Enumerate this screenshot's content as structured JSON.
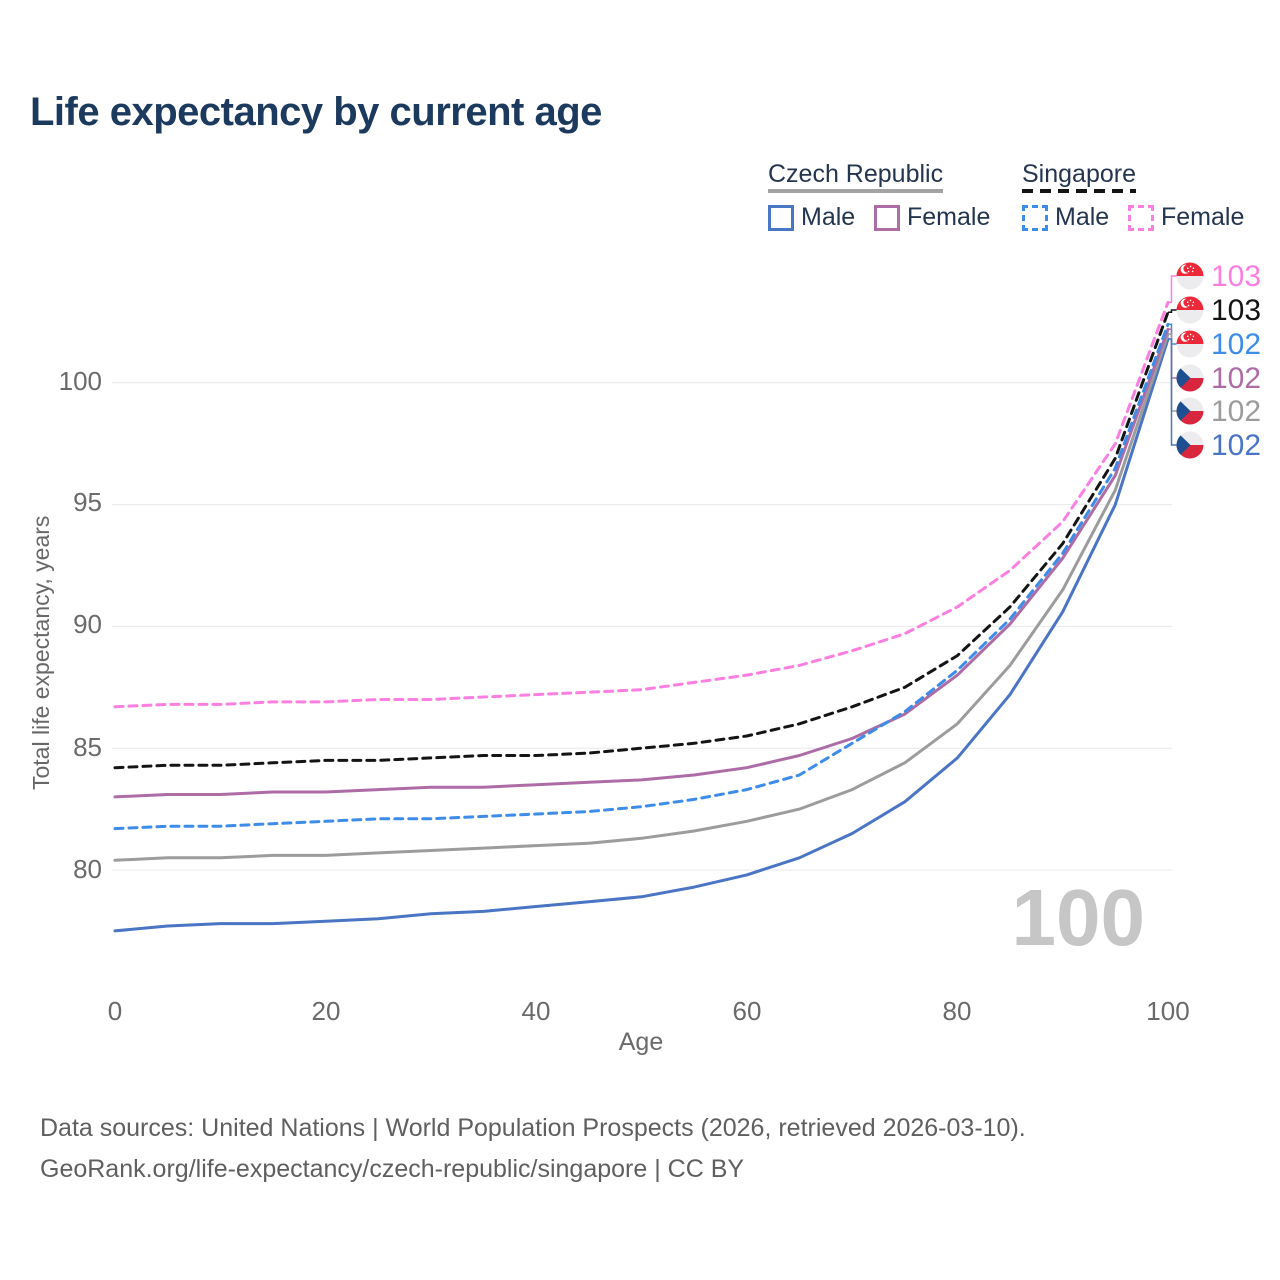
{
  "title": "Life expectancy by current age",
  "legend": {
    "czech": {
      "title": "Czech Republic",
      "male": "Male",
      "female": "Female"
    },
    "singapore": {
      "title": "Singapore",
      "male": "Male",
      "female": "Female"
    }
  },
  "axes": {
    "y_label": "Total life expectancy, years",
    "x_label": "Age",
    "y_ticks": [
      "100",
      "95",
      "90",
      "85",
      "80"
    ],
    "x_ticks": [
      "0",
      "20",
      "40",
      "60",
      "80",
      "100"
    ]
  },
  "watermark": "100",
  "footer": {
    "line1": "Data sources: United Nations | World Population Prospects (2026, retrieved 2026-03-10).",
    "line2": "GeoRank.org/life-expectancy/czech-republic/singapore | CC BY"
  },
  "chart_data": {
    "type": "line",
    "title": "Life expectancy by current age",
    "xlabel": "Age",
    "ylabel": "Total life expectancy, years",
    "xlim": [
      0,
      100
    ],
    "ylim": [
      77,
      104
    ],
    "grid": "horizontal",
    "y_gridlines": [
      100,
      95,
      90,
      85,
      80
    ],
    "x": [
      0,
      5,
      10,
      15,
      20,
      25,
      30,
      35,
      40,
      45,
      50,
      55,
      60,
      65,
      70,
      75,
      80,
      85,
      90,
      95,
      100
    ],
    "series": [
      {
        "name": "Singapore Female",
        "country": "Singapore",
        "sex": "Female",
        "color": "#fb7fe0",
        "dash": "dashed",
        "flag": "sg",
        "end_label": "103",
        "values": [
          86.7,
          86.8,
          86.8,
          86.9,
          86.9,
          87.0,
          87.0,
          87.1,
          87.2,
          87.3,
          87.4,
          87.7,
          88.0,
          88.4,
          89.0,
          89.7,
          90.8,
          92.3,
          94.3,
          97.5,
          103.3
        ]
      },
      {
        "name": "Singapore Both sexes",
        "country": "Singapore",
        "sex": "Both",
        "color": "#141414",
        "dash": "dashed",
        "flag": "sg",
        "end_label": "103",
        "values": [
          84.2,
          84.3,
          84.3,
          84.4,
          84.5,
          84.5,
          84.6,
          84.7,
          84.7,
          84.8,
          85.0,
          85.2,
          85.5,
          86.0,
          86.7,
          87.5,
          88.8,
          90.8,
          93.4,
          96.9,
          102.9
        ]
      },
      {
        "name": "Singapore Male",
        "country": "Singapore",
        "sex": "Male",
        "color": "#3d8ce8",
        "dash": "dashed",
        "flag": "sg",
        "end_label": "102",
        "values": [
          81.7,
          81.8,
          81.8,
          81.9,
          82.0,
          82.1,
          82.1,
          82.2,
          82.3,
          82.4,
          82.6,
          82.9,
          83.3,
          83.9,
          85.2,
          86.5,
          88.2,
          90.3,
          93.0,
          96.5,
          102.4
        ]
      },
      {
        "name": "Czech Republic Female",
        "country": "Czech Republic",
        "sex": "Female",
        "color": "#ad6ca6",
        "dash": "solid",
        "flag": "cz",
        "end_label": "102",
        "values": [
          83.0,
          83.1,
          83.1,
          83.2,
          83.2,
          83.3,
          83.4,
          83.4,
          83.5,
          83.6,
          83.7,
          83.9,
          84.2,
          84.7,
          85.4,
          86.4,
          88.0,
          90.1,
          92.8,
          96.2,
          102.2
        ]
      },
      {
        "name": "Czech Republic Both sexes",
        "country": "Czech Republic",
        "sex": "Both",
        "color": "#9c9c9c",
        "dash": "solid",
        "flag": "cz",
        "end_label": "102",
        "values": [
          80.4,
          80.5,
          80.5,
          80.6,
          80.6,
          80.7,
          80.8,
          80.9,
          81.0,
          81.1,
          81.3,
          81.6,
          82.0,
          82.5,
          83.3,
          84.4,
          86.0,
          88.4,
          91.5,
          95.6,
          102.0
        ]
      },
      {
        "name": "Czech Republic Male",
        "country": "Czech Republic",
        "sex": "Male",
        "color": "#4a74c4",
        "dash": "solid",
        "flag": "cz",
        "end_label": "102",
        "values": [
          77.5,
          77.7,
          77.8,
          77.8,
          77.9,
          78.0,
          78.2,
          78.3,
          78.5,
          78.7,
          78.9,
          79.3,
          79.8,
          80.5,
          81.5,
          82.8,
          84.6,
          87.2,
          90.6,
          95.0,
          101.8
        ]
      }
    ]
  },
  "colors": {
    "title": "#1c3a5e",
    "czech_male": "#4a74c4",
    "czech_female": "#ad6ca6",
    "czech_both": "#9c9c9c",
    "singapore_male": "#3d8ce8",
    "singapore_female": "#fb7fe0",
    "singapore_both": "#141414",
    "gridline": "#e8e8e8",
    "axis_text": "#6a6a6a",
    "watermark": "#c6c6c6"
  }
}
